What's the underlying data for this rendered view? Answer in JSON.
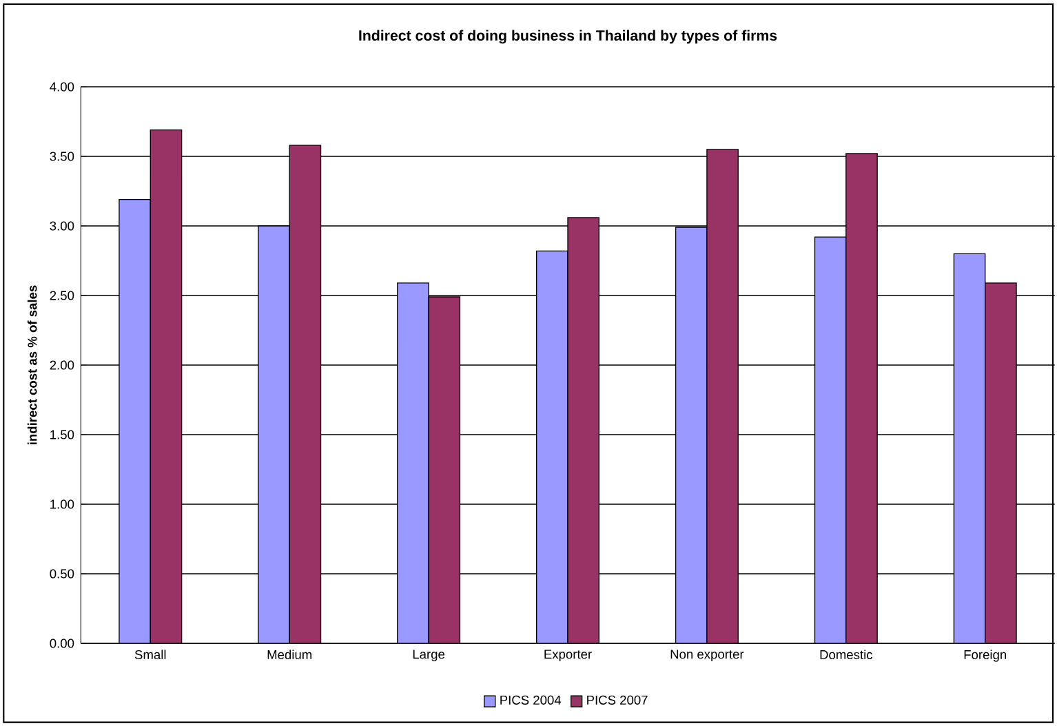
{
  "chart_data": {
    "type": "bar",
    "title": "Indirect cost of doing business in Thailand by types of firms",
    "ylabel": "indirect cost as % of sales",
    "categories": [
      "Small",
      "Medium",
      "Large",
      "Exporter",
      "Non exporter",
      "Domestic",
      "Foreign"
    ],
    "series": [
      {
        "name": "PICS 2004",
        "color": "#9999ff",
        "values": [
          3.19,
          3.0,
          2.59,
          2.82,
          2.99,
          2.92,
          2.8
        ]
      },
      {
        "name": "PICS 2007",
        "color": "#993366",
        "values": [
          3.69,
          3.58,
          2.49,
          3.06,
          3.55,
          3.52,
          2.59
        ]
      }
    ],
    "ylim": [
      0,
      4
    ],
    "yticks": [
      {
        "value": 0,
        "label": "0.00"
      },
      {
        "value": 0.5,
        "label": "0.50"
      },
      {
        "value": 1,
        "label": "1.00"
      },
      {
        "value": 1.5,
        "label": "1.50"
      },
      {
        "value": 2,
        "label": "2.00"
      },
      {
        "value": 2.5,
        "label": "2.50"
      },
      {
        "value": 3,
        "label": "3.00"
      },
      {
        "value": 3.5,
        "label": "3.50"
      },
      {
        "value": 4,
        "label": "4.00"
      }
    ],
    "grid": "y",
    "legend": "bottom"
  }
}
